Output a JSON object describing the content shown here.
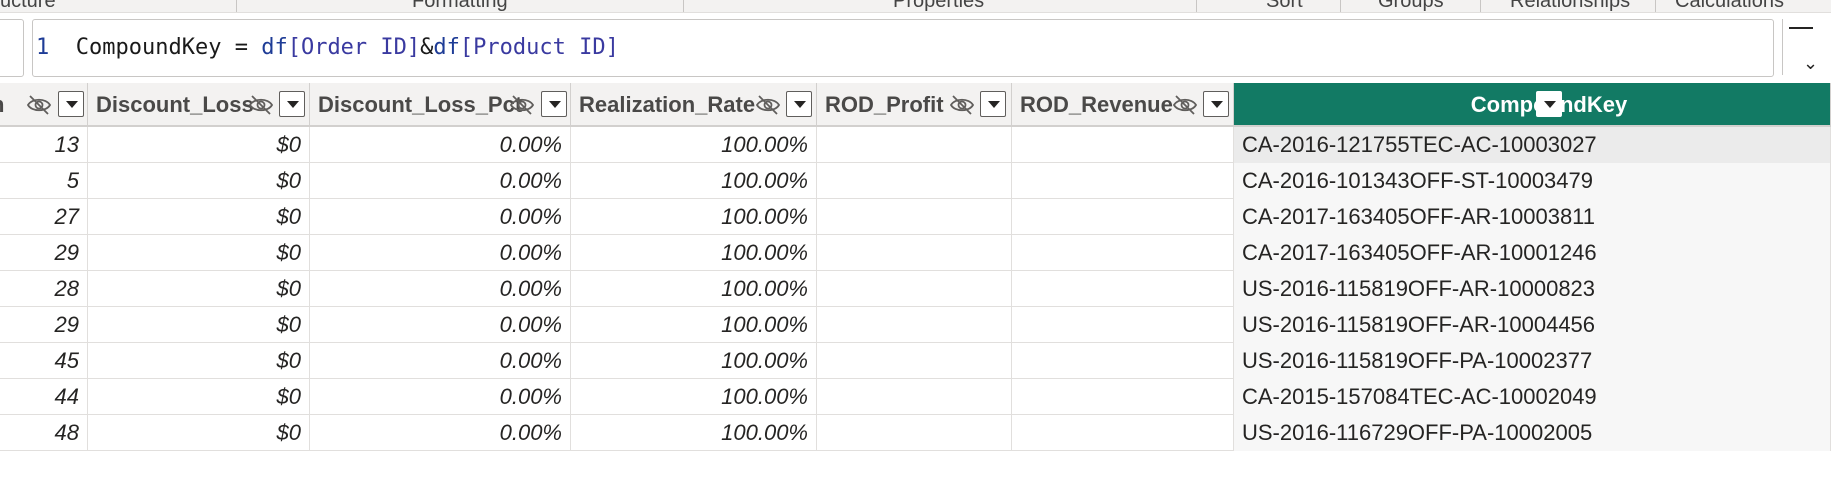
{
  "ribbon": {
    "groups": [
      "ucture",
      "Formatting",
      "Properties",
      "Sort",
      "Groups",
      "Relationships",
      "Calculations"
    ]
  },
  "formula_bar": {
    "line_number": "1",
    "measure_name": "CompoundKey",
    "equals": " = ",
    "expression_parts": {
      "fn1": "df",
      "col1": "[Order ID]",
      "amp": "&",
      "fn2": "df",
      "col2": "[Product ID]"
    }
  },
  "table": {
    "columns": [
      {
        "name": "n",
        "hidden_icon": true
      },
      {
        "name": "Discount_Loss",
        "hidden_icon": true
      },
      {
        "name": "Discount_Loss_Pct",
        "hidden_icon": true
      },
      {
        "name": "Realization_Rate",
        "hidden_icon": true
      },
      {
        "name": "ROD_Profit",
        "hidden_icon": true
      },
      {
        "name": "ROD_Revenue",
        "hidden_icon": true
      },
      {
        "name": "CompoundKey",
        "hidden_icon": false
      }
    ],
    "rows": [
      [
        "13",
        "$0",
        "0.00%",
        "100.00%",
        "",
        "",
        "CA-2016-121755TEC-AC-10003027"
      ],
      [
        "5",
        "$0",
        "0.00%",
        "100.00%",
        "",
        "",
        "CA-2016-101343OFF-ST-10003479"
      ],
      [
        "27",
        "$0",
        "0.00%",
        "100.00%",
        "",
        "",
        "CA-2017-163405OFF-AR-10003811"
      ],
      [
        "29",
        "$0",
        "0.00%",
        "100.00%",
        "",
        "",
        "CA-2017-163405OFF-AR-10001246"
      ],
      [
        "28",
        "$0",
        "0.00%",
        "100.00%",
        "",
        "",
        "US-2016-115819OFF-AR-10000823"
      ],
      [
        "29",
        "$0",
        "0.00%",
        "100.00%",
        "",
        "",
        "US-2016-115819OFF-AR-10004456"
      ],
      [
        "45",
        "$0",
        "0.00%",
        "100.00%",
        "",
        "",
        "US-2016-115819OFF-PA-10002377"
      ],
      [
        "44",
        "$0",
        "0.00%",
        "100.00%",
        "",
        "",
        "CA-2015-157084TEC-AC-10002049"
      ],
      [
        "48",
        "$0",
        "0.00%",
        "100.00%",
        "",
        "",
        "US-2016-116729OFF-PA-10002005"
      ]
    ]
  },
  "colors": {
    "accent_header": "#127a64",
    "header_bg": "#f3f2f1",
    "grid_line": "#e1dfdd"
  },
  "icons": {
    "hidden": "eye-slash-icon",
    "dropdown": "dropdown-arrow-icon"
  }
}
